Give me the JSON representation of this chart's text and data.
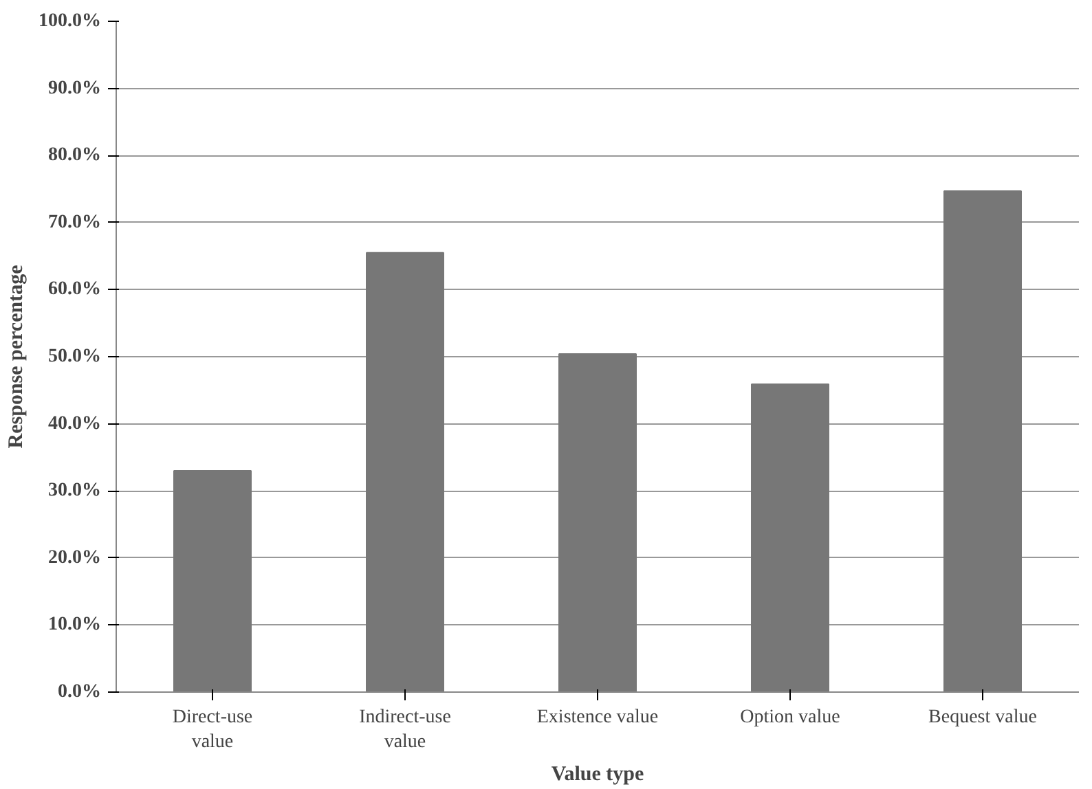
{
  "chart_data": {
    "type": "bar",
    "xlabel": "Value type",
    "ylabel": "Response percentage",
    "categories": [
      "Direct-use\nvalue",
      "Indirect-use\nvalue",
      "Existence value",
      "Option value",
      "Bequest value"
    ],
    "values": [
      33.0,
      65.5,
      50.4,
      45.9,
      74.7
    ],
    "color": "#777777",
    "ylim": [
      0,
      100
    ],
    "yticks": [
      {
        "value": 0,
        "label": "0.0%"
      },
      {
        "value": 10,
        "label": "10.0%"
      },
      {
        "value": 20,
        "label": "20.0%"
      },
      {
        "value": 30,
        "label": "30.0%"
      },
      {
        "value": 40,
        "label": "40.0%"
      },
      {
        "value": 50,
        "label": "50.0%"
      },
      {
        "value": 60,
        "label": "60.0%"
      },
      {
        "value": 70,
        "label": "70.0%"
      },
      {
        "value": 80,
        "label": "80.0%"
      },
      {
        "value": 90,
        "label": "90.0%"
      },
      {
        "value": 100,
        "label": "100.0%"
      }
    ],
    "grid": "y"
  }
}
